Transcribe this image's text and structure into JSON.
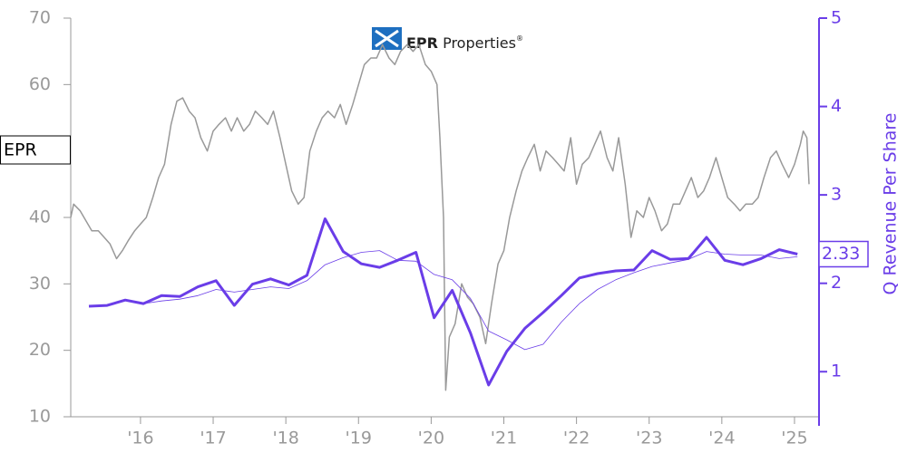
{
  "chart_data": {
    "type": "line",
    "logo": {
      "brand": "EPR",
      "text": "Properties",
      "mark": "®"
    },
    "xlim": [
      2015.04,
      2025.3
    ],
    "xticks": [
      {
        "value": 2016,
        "label": "'16"
      },
      {
        "value": 2017,
        "label": "'17"
      },
      {
        "value": 2018,
        "label": "'18"
      },
      {
        "value": 2019,
        "label": "'19"
      },
      {
        "value": 2020,
        "label": "'20"
      },
      {
        "value": 2021,
        "label": "'21"
      },
      {
        "value": 2022,
        "label": "'22"
      },
      {
        "value": 2023,
        "label": "'23"
      },
      {
        "value": 2024,
        "label": "'24"
      },
      {
        "value": 2025,
        "label": "'25"
      }
    ],
    "ylim": [
      10,
      70
    ],
    "yticks": [
      10,
      20,
      30,
      40,
      50,
      60,
      70
    ],
    "y2lim": [
      0.49,
      5
    ],
    "y2ticks": [
      1,
      2,
      3,
      4,
      5
    ],
    "y2label": "Q Revenue Per Share",
    "axis_color": "#999999",
    "y2_color": "#6a3de8",
    "series": [
      {
        "name": "EPR",
        "color": "#999999",
        "line_width": 1.5,
        "x": [
          2015.04,
          2015.08,
          2015.17,
          2015.25,
          2015.33,
          2015.42,
          2015.5,
          2015.58,
          2015.67,
          2015.75,
          2015.83,
          2015.92,
          2016.0,
          2016.08,
          2016.17,
          2016.25,
          2016.33,
          2016.42,
          2016.5,
          2016.58,
          2016.67,
          2016.75,
          2016.83,
          2016.92,
          2017.0,
          2017.08,
          2017.17,
          2017.25,
          2017.33,
          2017.42,
          2017.5,
          2017.58,
          2017.67,
          2017.75,
          2017.83,
          2017.92,
          2018.0,
          2018.08,
          2018.17,
          2018.25,
          2018.33,
          2018.42,
          2018.5,
          2018.58,
          2018.67,
          2018.75,
          2018.83,
          2018.92,
          2019.0,
          2019.08,
          2019.17,
          2019.25,
          2019.33,
          2019.42,
          2019.5,
          2019.58,
          2019.67,
          2019.75,
          2019.83,
          2019.92,
          2020.0,
          2020.08,
          2020.12,
          2020.17,
          2020.2,
          2020.25,
          2020.33,
          2020.42,
          2020.5,
          2020.58,
          2020.67,
          2020.75,
          2020.83,
          2020.92,
          2021.0,
          2021.08,
          2021.17,
          2021.25,
          2021.33,
          2021.42,
          2021.5,
          2021.58,
          2021.67,
          2021.75,
          2021.83,
          2021.92,
          2022.0,
          2022.08,
          2022.17,
          2022.25,
          2022.33,
          2022.42,
          2022.5,
          2022.58,
          2022.67,
          2022.75,
          2022.83,
          2022.92,
          2023.0,
          2023.08,
          2023.17,
          2023.25,
          2023.33,
          2023.42,
          2023.5,
          2023.58,
          2023.67,
          2023.75,
          2023.83,
          2023.92,
          2024.0,
          2024.08,
          2024.17,
          2024.25,
          2024.33,
          2024.42,
          2024.5,
          2024.58,
          2024.67,
          2024.75,
          2024.83,
          2024.92,
          2025.0,
          2025.08,
          2025.12,
          2025.17,
          2025.2
        ],
        "values": [
          40,
          42,
          41,
          39.5,
          38,
          38,
          37,
          36,
          33.8,
          35,
          36.5,
          38,
          39,
          40,
          43,
          46,
          48,
          54,
          57.5,
          58,
          56,
          55,
          52,
          50,
          53,
          54,
          55,
          53,
          55,
          53,
          54,
          56,
          55,
          54,
          56,
          52,
          48,
          44,
          42,
          43,
          50,
          53,
          55,
          56,
          55,
          57,
          54,
          57,
          60,
          63,
          64,
          64,
          66,
          64,
          63,
          65,
          66,
          65,
          66,
          63,
          62,
          60,
          52,
          40,
          14,
          22,
          24,
          30,
          28,
          27,
          25,
          21,
          27,
          33,
          35,
          40,
          44,
          47,
          49,
          51,
          47,
          50,
          49,
          48,
          47,
          52,
          45,
          48,
          49,
          51,
          53,
          49,
          47,
          52,
          45,
          37,
          41,
          40,
          43,
          41,
          38,
          39,
          42,
          42,
          44,
          46,
          43,
          44,
          46,
          49,
          46,
          43,
          42,
          41,
          42,
          42,
          43,
          46,
          49,
          50,
          48,
          46,
          48,
          51,
          53,
          52,
          45
        ]
      },
      {
        "color": "#6a3de8",
        "axis": "y2",
        "line_width": 3,
        "x": [
          2015.29,
          2015.54,
          2015.79,
          2016.04,
          2016.29,
          2016.54,
          2016.79,
          2017.04,
          2017.29,
          2017.54,
          2017.79,
          2018.04,
          2018.29,
          2018.54,
          2018.79,
          2019.04,
          2019.29,
          2019.54,
          2019.79,
          2020.04,
          2020.29,
          2020.54,
          2020.79,
          2021.04,
          2021.29,
          2021.54,
          2021.79,
          2022.04,
          2022.29,
          2022.54,
          2022.79,
          2023.04,
          2023.29,
          2023.54,
          2023.79,
          2024.04,
          2024.29,
          2024.54,
          2024.79,
          2025.04
        ],
        "values": [
          1.74,
          1.75,
          1.81,
          1.77,
          1.86,
          1.85,
          1.96,
          2.03,
          1.75,
          1.99,
          2.05,
          1.98,
          2.09,
          2.73,
          2.36,
          2.22,
          2.18,
          2.26,
          2.35,
          1.61,
          1.92,
          1.44,
          0.85,
          1.23,
          1.49,
          1.67,
          1.86,
          2.06,
          2.11,
          2.14,
          2.15,
          2.37,
          2.27,
          2.28,
          2.52,
          2.26,
          2.21,
          2.28,
          2.38,
          2.33
        ]
      },
      {
        "color": "#6a3de8",
        "axis": "y2",
        "line_width": 0.8,
        "x": [
          2015.29,
          2015.54,
          2015.79,
          2016.04,
          2016.29,
          2016.54,
          2016.79,
          2017.04,
          2017.29,
          2017.54,
          2017.79,
          2018.04,
          2018.29,
          2018.54,
          2018.79,
          2019.04,
          2019.29,
          2019.54,
          2019.79,
          2020.04,
          2020.29,
          2020.54,
          2020.79,
          2021.04,
          2021.29,
          2021.54,
          2021.79,
          2022.04,
          2022.29,
          2022.54,
          2022.79,
          2023.04,
          2023.29,
          2023.54,
          2023.79,
          2024.04,
          2024.29,
          2024.54,
          2024.79,
          2025.04
        ],
        "values": [
          null,
          null,
          null,
          1.77,
          1.8,
          1.82,
          1.86,
          1.93,
          1.9,
          1.93,
          1.96,
          1.94,
          2.03,
          2.21,
          2.29,
          2.35,
          2.37,
          2.26,
          2.25,
          2.1,
          2.04,
          1.83,
          1.46,
          1.36,
          1.25,
          1.31,
          1.56,
          1.77,
          1.93,
          2.04,
          2.12,
          2.19,
          2.23,
          2.27,
          2.36,
          2.33,
          2.32,
          2.32,
          2.28,
          2.3
        ]
      }
    ]
  }
}
